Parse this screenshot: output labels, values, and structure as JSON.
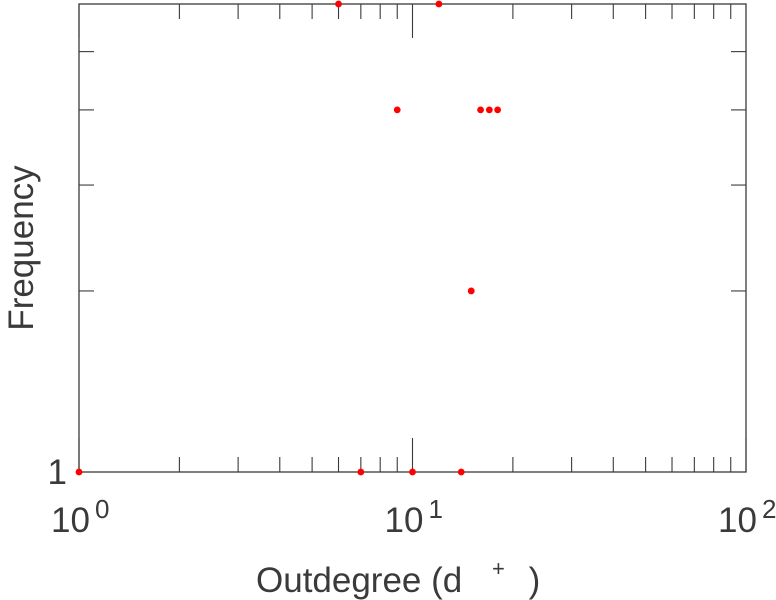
{
  "chart_data": {
    "type": "scatter",
    "xscale": "log",
    "yscale": "log",
    "xlim": [
      1,
      100
    ],
    "ylim": [
      1,
      6
    ],
    "xlabel": "Outdegree (d",
    "xlabel_sup": "+",
    "xlabel_close": ")",
    "ylabel": "Frequency",
    "x_ticks": [
      {
        "value": 1,
        "base": "10",
        "exp": "0"
      },
      {
        "value": 10,
        "base": "10",
        "exp": "1"
      },
      {
        "value": 100,
        "base": "10",
        "exp": "2"
      }
    ],
    "y_tick_labels": [
      {
        "value": 1,
        "label": "1"
      }
    ],
    "grid": false,
    "marker_color": "#ff0000",
    "points": [
      {
        "x": 1,
        "y": 1
      },
      {
        "x": 7,
        "y": 1
      },
      {
        "x": 10,
        "y": 1
      },
      {
        "x": 14,
        "y": 1
      },
      {
        "x": 15,
        "y": 2
      },
      {
        "x": 9,
        "y": 4
      },
      {
        "x": 16,
        "y": 4
      },
      {
        "x": 17,
        "y": 4
      },
      {
        "x": 18,
        "y": 4
      },
      {
        "x": 6,
        "y": 6
      },
      {
        "x": 12,
        "y": 6
      }
    ]
  }
}
